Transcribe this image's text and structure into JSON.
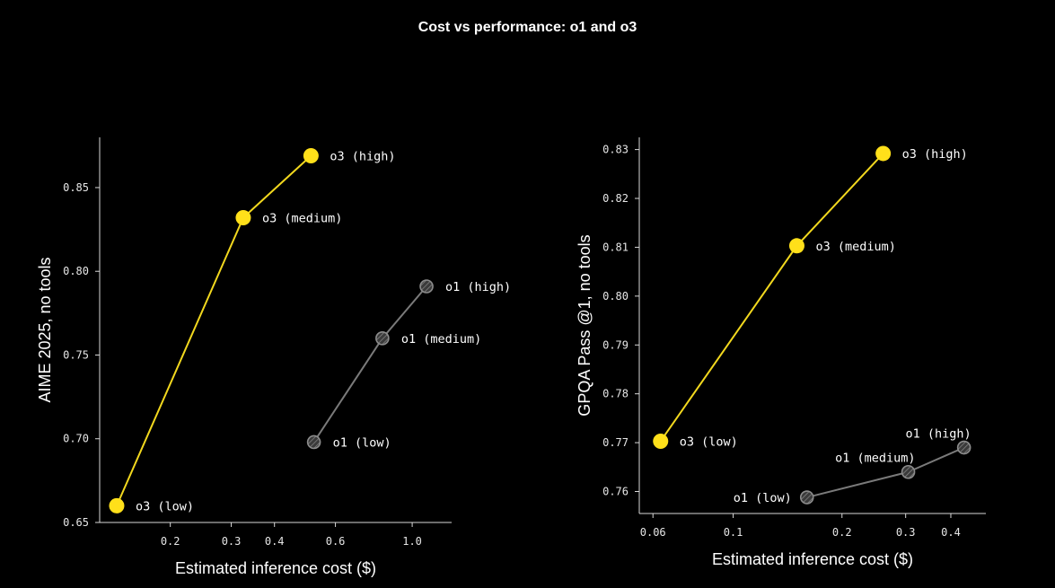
{
  "title": "Cost vs performance: o1 and o3",
  "colors": {
    "o3": "#ffe01a",
    "o3_line": "#f2d81e",
    "o1_line": "#7a7a7a",
    "o1_fill": "#3a3a3a",
    "axis": "#d9d9d9"
  },
  "chart_data": [
    {
      "type": "line",
      "xlabel": "Estimated inference cost ($)",
      "ylabel": "AIME 2025, no tools",
      "xscale": "log",
      "xlim": [
        0.125,
        1.3
      ],
      "ylim": [
        0.65,
        0.88
      ],
      "xticks": [
        0.2,
        0.3,
        0.4,
        0.6,
        1.0
      ],
      "xtick_labels": [
        "0.2",
        "0.3",
        "0.4",
        "0.6",
        "1.0"
      ],
      "yticks": [
        0.65,
        0.7,
        0.75,
        0.8,
        0.85
      ],
      "ytick_labels": [
        "0.65",
        "0.70",
        "0.75",
        "0.80",
        "0.85"
      ],
      "series": [
        {
          "name": "o3",
          "style": "o3",
          "points": [
            {
              "label": "o3 (low)",
              "x": 0.14,
              "y": 0.66,
              "pos": "right"
            },
            {
              "label": "o3 (medium)",
              "x": 0.325,
              "y": 0.832,
              "pos": "right"
            },
            {
              "label": "o3 (high)",
              "x": 0.51,
              "y": 0.869,
              "pos": "right"
            }
          ]
        },
        {
          "name": "o1",
          "style": "o1",
          "points": [
            {
              "label": "o1 (low)",
              "x": 0.52,
              "y": 0.698,
              "pos": "right"
            },
            {
              "label": "o1 (medium)",
              "x": 0.82,
              "y": 0.76,
              "pos": "right"
            },
            {
              "label": "o1 (high)",
              "x": 1.1,
              "y": 0.791,
              "pos": "right"
            }
          ]
        }
      ]
    },
    {
      "type": "line",
      "xlabel": "Estimated inference cost ($)",
      "ylabel": "GPQA Pass @1, no tools",
      "xscale": "log",
      "xlim": [
        0.055,
        0.5
      ],
      "ylim": [
        0.7555,
        0.8325
      ],
      "xticks": [
        0.06,
        0.1,
        0.2,
        0.3,
        0.4
      ],
      "xtick_labels": [
        "0.06",
        "0.1",
        "0.2",
        "0.3",
        "0.4"
      ],
      "yticks": [
        0.76,
        0.77,
        0.78,
        0.79,
        0.8,
        0.81,
        0.82,
        0.83
      ],
      "ytick_labels": [
        "0.76",
        "0.77",
        "0.78",
        "0.79",
        "0.80",
        "0.81",
        "0.82",
        "0.83"
      ],
      "series": [
        {
          "name": "o3",
          "style": "o3",
          "points": [
            {
              "label": "o3 (low)",
              "x": 0.063,
              "y": 0.7703,
              "pos": "right"
            },
            {
              "label": "o3 (medium)",
              "x": 0.15,
              "y": 0.8103,
              "pos": "right"
            },
            {
              "label": "o3 (high)",
              "x": 0.26,
              "y": 0.8292,
              "pos": "right"
            }
          ]
        },
        {
          "name": "o1",
          "style": "o1",
          "points": [
            {
              "label": "o1 (low)",
              "x": 0.16,
              "y": 0.7588,
              "pos": "left"
            },
            {
              "label": "o1 (medium)",
              "x": 0.305,
              "y": 0.764,
              "pos": "upleft"
            },
            {
              "label": "o1 (high)",
              "x": 0.435,
              "y": 0.769,
              "pos": "upleft"
            }
          ]
        }
      ]
    }
  ]
}
